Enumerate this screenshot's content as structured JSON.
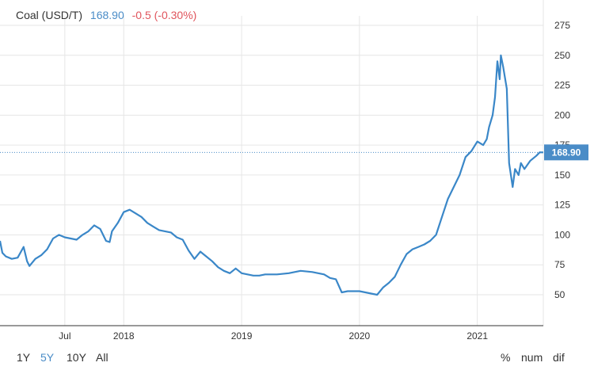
{
  "legend": {
    "name": "Coal (USD/T)",
    "price": "168.90",
    "change": "-0.5 (-0.30%)"
  },
  "price_tag": "168.90",
  "ranges": [
    {
      "label": "1Y",
      "active": false
    },
    {
      "label": "5Y",
      "active": true
    },
    {
      "label": "10Y",
      "active": false
    },
    {
      "label": "All",
      "active": false
    }
  ],
  "modes": [
    "%",
    "num",
    "dif"
  ],
  "colors": {
    "line": "#3a87c8",
    "price_tag": "#4a8cc7",
    "change": "#e0545c",
    "grid": "#e6e6e6",
    "axis": "#333333"
  },
  "chart_data": {
    "type": "line",
    "title": "",
    "xlabel": "",
    "ylabel": "",
    "ylim": [
      25,
      290
    ],
    "xlim": [
      2016.95,
      2021.56
    ],
    "y_ticks": [
      50,
      75,
      100,
      125,
      150,
      175,
      200,
      225,
      250,
      275
    ],
    "x_ticks": [
      {
        "label": "Jul",
        "value": 2017.5
      },
      {
        "label": "2018",
        "value": 2018.0
      },
      {
        "label": "2019",
        "value": 2019.0
      },
      {
        "label": "2020",
        "value": 2020.0
      },
      {
        "label": "2021",
        "value": 2021.0
      }
    ],
    "grid": true,
    "last_value": 168.9,
    "series": [
      {
        "name": "",
        "x": [
          2016.95,
          2016.97,
          2017.0,
          2017.05,
          2017.1,
          2017.15,
          2017.18,
          2017.2,
          2017.25,
          2017.3,
          2017.35,
          2017.4,
          2017.45,
          2017.5,
          2017.55,
          2017.6,
          2017.65,
          2017.7,
          2017.75,
          2017.8,
          2017.85,
          2017.88,
          2017.9,
          2017.95,
          2018.0,
          2018.05,
          2018.1,
          2018.15,
          2018.2,
          2018.25,
          2018.3,
          2018.35,
          2018.4,
          2018.45,
          2018.5,
          2018.55,
          2018.6,
          2018.65,
          2018.7,
          2018.75,
          2018.8,
          2018.85,
          2018.9,
          2018.95,
          2019.0,
          2019.05,
          2019.1,
          2019.15,
          2019.2,
          2019.3,
          2019.4,
          2019.5,
          2019.6,
          2019.7,
          2019.75,
          2019.8,
          2019.85,
          2019.9,
          2020.0,
          2020.1,
          2020.15,
          2020.2,
          2020.25,
          2020.3,
          2020.35,
          2020.4,
          2020.45,
          2020.5,
          2020.55,
          2020.6,
          2020.65,
          2020.7,
          2020.75,
          2020.8,
          2020.85,
          2020.9,
          2020.95,
          2021.0,
          2021.05,
          2021.08,
          2021.1,
          2021.13,
          2021.15,
          2021.17,
          2021.19,
          2021.2,
          2021.22,
          2021.25,
          2021.27,
          2021.3,
          2021.32,
          2021.35,
          2021.37,
          2021.4,
          2021.45,
          2021.5,
          2021.53,
          2021.56
        ],
        "values": [
          95,
          85,
          82,
          80,
          81,
          90,
          78,
          74,
          80,
          83,
          88,
          97,
          100,
          98,
          97,
          96,
          100,
          103,
          108,
          105,
          95,
          94,
          103,
          110,
          119,
          121,
          118,
          115,
          110,
          107,
          104,
          103,
          102,
          98,
          96,
          87,
          80,
          86,
          82,
          78,
          73,
          70,
          68,
          72,
          68,
          67,
          66,
          66,
          67,
          67,
          68,
          70,
          69,
          67,
          64,
          63,
          52,
          53,
          53,
          51,
          50,
          56,
          60,
          65,
          75,
          84,
          88,
          90,
          92,
          95,
          100,
          115,
          130,
          140,
          150,
          165,
          170,
          178,
          175,
          180,
          190,
          200,
          215,
          245,
          230,
          250,
          240,
          222,
          160,
          140,
          155,
          150,
          160,
          155,
          162,
          166,
          169,
          168.9
        ]
      }
    ]
  }
}
